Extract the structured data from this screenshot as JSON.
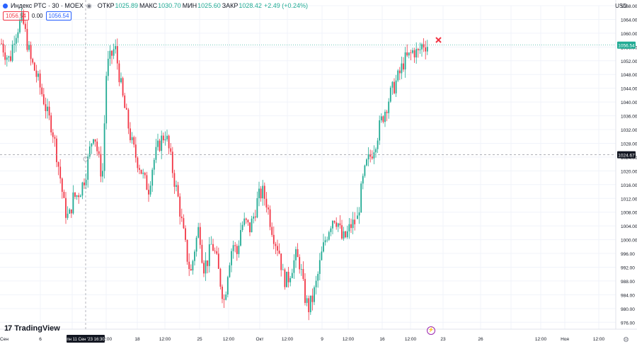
{
  "header": {
    "symbol": "Индекс РТС · 30 · MOEX",
    "open_label": "ОТКР",
    "open_value": "1025.89",
    "high_label": "МАКС",
    "high_value": "1030.70",
    "low_label": "МИН",
    "low_value": "1025.60",
    "close_label": "ЗАКР",
    "close_value": "1028.42",
    "change": "+2.49 (+0.24%)"
  },
  "order": {
    "sell": "1056.54",
    "spread": "0.00",
    "buy": "1056.54"
  },
  "currency": "USD",
  "logo_text": "TradingView",
  "crosshair": {
    "time_label": "пн 11 Сен '23   16:30",
    "price_label": "1024.67",
    "price": 1024.67
  },
  "last_price": {
    "label": "1056.54",
    "price": 1056.54
  },
  "colors": {
    "up": "#22ab94",
    "down": "#f23645",
    "grid": "#f0f3fa",
    "text": "#131722"
  },
  "chart_data": {
    "type": "candlestick",
    "ylim": [
      974,
      1068
    ],
    "y_ticks": [
      976,
      980,
      984,
      988,
      992,
      996,
      1000,
      1004,
      1008,
      1012,
      1016,
      1020,
      1024,
      1028,
      1032,
      1036,
      1040,
      1044,
      1048,
      1052,
      1056,
      1060,
      1064,
      1068
    ],
    "x_tick_labels": [
      "Сен",
      "6",
      "12:00",
      "18",
      "12:00",
      "25",
      "12:00",
      "Окт",
      "12:00",
      "9",
      "12:00",
      "16",
      "12:00",
      "23",
      "26",
      "12:00",
      "Ноя",
      "12:00"
    ],
    "close_path": [
      1057,
      1054,
      1052,
      1059,
      1062,
      1064,
      1058,
      1052,
      1049,
      1045,
      1041,
      1036,
      1033,
      1026,
      1018,
      1009,
      1006,
      1012,
      1013,
      1015,
      1019,
      1026,
      1032,
      1024,
      1018,
      1050,
      1053,
      1056,
      1048,
      1040,
      1034,
      1028,
      1024,
      1021,
      1017,
      1015,
      1022,
      1026,
      1029,
      1031,
      1025,
      1018,
      1012,
      1004,
      996,
      990,
      998,
      1004,
      992,
      994,
      999,
      995,
      988,
      982,
      993,
      999,
      996,
      1004,
      1005,
      1003,
      1007,
      1012,
      1014,
      1011,
      1005,
      1000,
      997,
      989,
      988,
      992,
      995,
      993,
      984,
      980,
      983,
      988,
      995,
      1000,
      1004,
      1007,
      1005,
      1000,
      1001,
      1004,
      1005,
      1006,
      1016,
      1022,
      1025,
      1029,
      1034,
      1038,
      1042,
      1045,
      1048,
      1052,
      1053,
      1055,
      1054,
      1057,
      1056.5
    ]
  }
}
